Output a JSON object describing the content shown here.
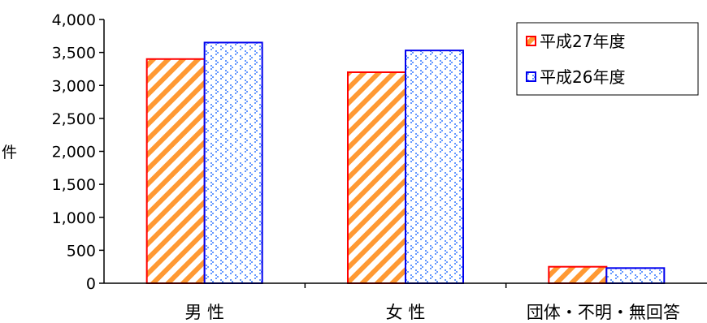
{
  "chart_data": {
    "type": "bar",
    "ylabel": "件",
    "ylim": [
      0,
      4000
    ],
    "yticks": [
      0,
      500,
      1000,
      1500,
      2000,
      2500,
      3000,
      3500,
      4000
    ],
    "ytick_labels": [
      "0",
      "500",
      "1,000",
      "1,500",
      "2,000",
      "2,500",
      "3,000",
      "3,500",
      "4,000"
    ],
    "categories": [
      "男 性",
      "女 性",
      "団体・不明・無回答"
    ],
    "series": [
      {
        "name": "平成27年度",
        "values": [
          3400,
          3200,
          250
        ]
      },
      {
        "name": "平成26年度",
        "values": [
          3650,
          3530,
          230
        ]
      }
    ],
    "legend_position": "top-right",
    "colors": {
      "series_1_stroke": "#ff0000",
      "series_1_hatch": "#ff9933",
      "series_2_stroke": "#0000ee",
      "series_2_dots": "#6699ff",
      "axis": "#000000"
    }
  }
}
